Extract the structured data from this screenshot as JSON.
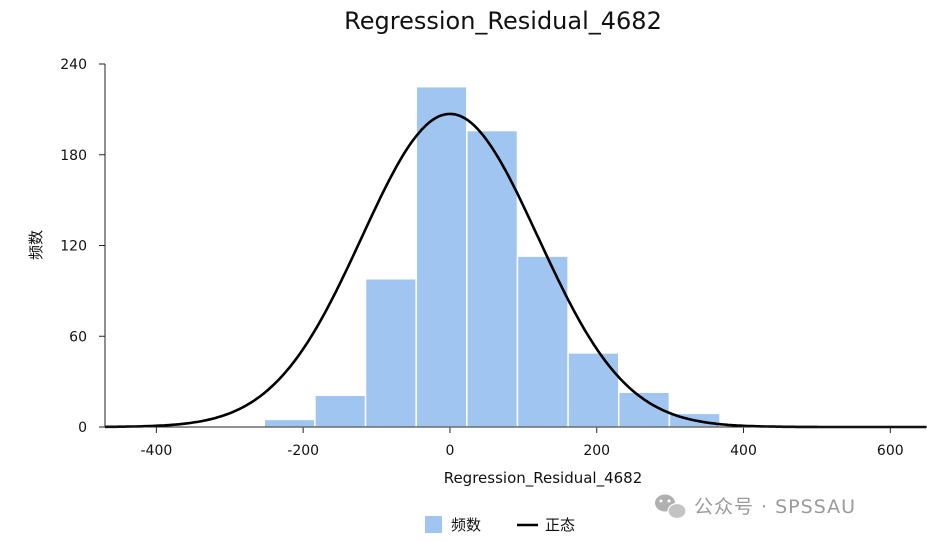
{
  "chart_data": {
    "type": "bar",
    "title": "Regression_Residual_4682",
    "xlabel": "Regression_Residual_4682",
    "ylabel": "频数",
    "xlim": [
      -470,
      650
    ],
    "ylim": [
      0,
      240
    ],
    "x_ticks": [
      -400,
      -200,
      0,
      200,
      400,
      600
    ],
    "y_ticks": [
      0,
      60,
      120,
      180,
      240
    ],
    "x_tick_labels": [
      "-400",
      "-200",
      "0",
      "200",
      "400",
      "600"
    ],
    "y_tick_labels": [
      "0",
      "60",
      "120",
      "180",
      "240"
    ],
    "bin_edges": [
      -253,
      -184,
      -115,
      -46,
      23,
      92,
      161,
      230,
      299,
      368,
      437,
      506
    ],
    "series": [
      {
        "name": "频数",
        "type": "histogram",
        "values": [
          5,
          21,
          98,
          225,
          196,
          113,
          49,
          23,
          9,
          1,
          1
        ],
        "color": "#9fc5f0"
      },
      {
        "name": "正态",
        "type": "line",
        "color": "#000000",
        "mean": 0,
        "std": 120,
        "peak": 207
      }
    ],
    "legend": {
      "placement": "bottom-center",
      "items": [
        "频数",
        "正态"
      ]
    },
    "grid": false
  },
  "watermark": {
    "text": "公众号 · SPSSAU",
    "icon": "wechat-icon"
  }
}
